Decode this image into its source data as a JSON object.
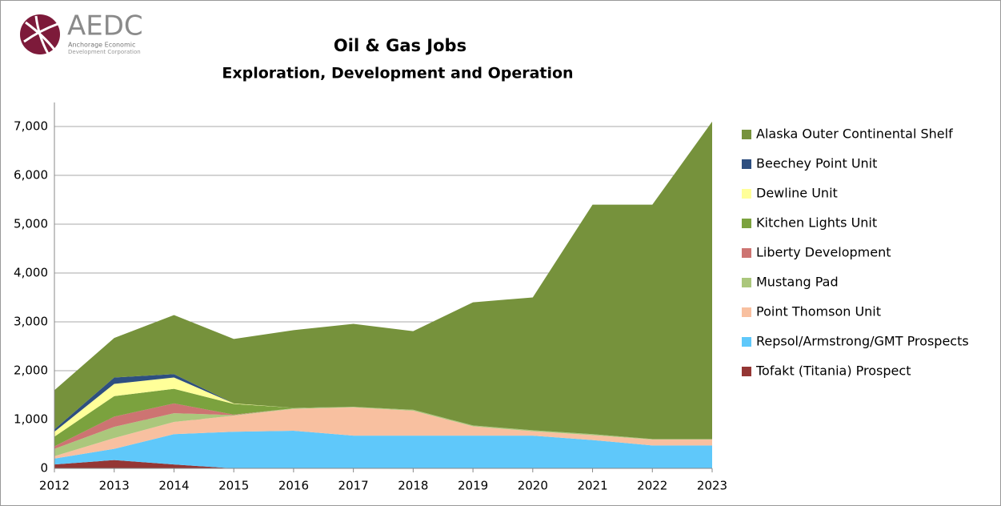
{
  "logo": {
    "name": "AEDC",
    "line1": "Anchorage Economic",
    "line2": "Development Corporation"
  },
  "chart_data": {
    "type": "stacked_area",
    "title": "Oil & Gas Jobs",
    "subtitle": "Exploration, Development and Operation",
    "x": [
      2012,
      2013,
      2014,
      2015,
      2016,
      2017,
      2018,
      2019,
      2020,
      2021,
      2022,
      2023
    ],
    "xlim": [
      2012,
      2023
    ],
    "xticks": [
      2012,
      2013,
      2014,
      2015,
      2016,
      2017,
      2018,
      2019,
      2020,
      2021,
      2022,
      2023
    ],
    "ylim": [
      0,
      7000
    ],
    "yticks": [
      0,
      {
        "value": 1000,
        "label": "1,000"
      },
      {
        "value": 2000,
        "label": "2,000"
      },
      {
        "value": 3000,
        "label": "3,000"
      },
      {
        "value": 4000,
        "label": "4,000"
      },
      {
        "value": 5000,
        "label": "5,000"
      },
      {
        "value": 6000,
        "label": "6,000"
      },
      {
        "value": 7000,
        "label": "7,000"
      }
    ],
    "grid": true,
    "legend": "right",
    "series": [
      {
        "name": "Tofakt (Titania) Prospect",
        "color": "#943634",
        "values": [
          80,
          170,
          80,
          0,
          0,
          0,
          0,
          0,
          0,
          0,
          0,
          0
        ]
      },
      {
        "name": "Repsol/Armstrong/GMT Prospects",
        "color": "#5fc8fa",
        "values": [
          120,
          230,
          620,
          750,
          770,
          670,
          670,
          670,
          670,
          580,
          470,
          470
        ]
      },
      {
        "name": "Point Thomson Unit",
        "color": "#f8c0a0",
        "values": [
          50,
          220,
          250,
          330,
          450,
          580,
          510,
          190,
          90,
          100,
          120,
          120
        ]
      },
      {
        "name": "Mustang Pad",
        "color": "#abc77c",
        "values": [
          150,
          230,
          180,
          10,
          10,
          10,
          20,
          20,
          20,
          20,
          10,
          10
        ]
      },
      {
        "name": "Liberty Development",
        "color": "#cd7472",
        "values": [
          50,
          210,
          200,
          10,
          0,
          0,
          0,
          0,
          0,
          0,
          0,
          0
        ]
      },
      {
        "name": "Kitchen Lights Unit",
        "color": "#7ba23e",
        "values": [
          200,
          420,
          300,
          220,
          10,
          0,
          0,
          0,
          0,
          0,
          0,
          0
        ]
      },
      {
        "name": "Dewline Unit",
        "color": "#ffff99",
        "values": [
          100,
          250,
          230,
          10,
          0,
          0,
          0,
          0,
          0,
          0,
          0,
          0
        ]
      },
      {
        "name": "Beechey Point Unit",
        "color": "#2e4f80",
        "values": [
          50,
          130,
          70,
          0,
          0,
          0,
          0,
          0,
          0,
          0,
          0,
          0
        ]
      },
      {
        "name": "Alaska Outer Continental Shelf",
        "color": "#76923c",
        "values": [
          800,
          810,
          1210,
          1320,
          1590,
          1700,
          1610,
          2520,
          2720,
          4700,
          4800,
          6500
        ]
      }
    ]
  }
}
